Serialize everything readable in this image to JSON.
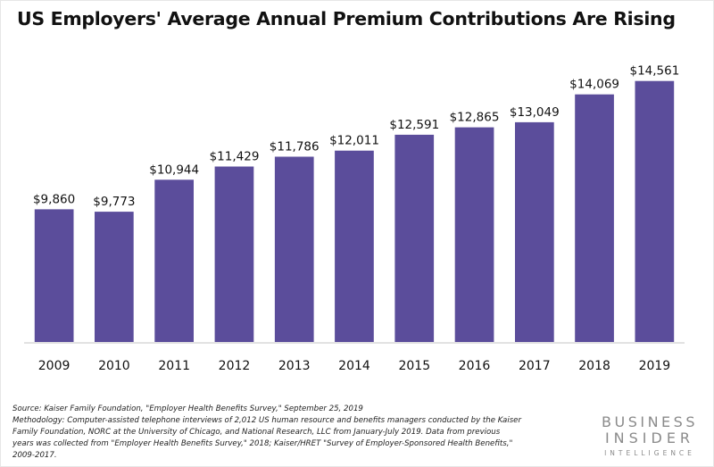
{
  "header": {
    "title": "US Employers' Average Annual Premium Contributions Are Rising"
  },
  "chart_data": {
    "type": "bar",
    "title": "US Employers' Average Annual Premium Contributions Are Rising",
    "xlabel": "",
    "ylabel": "",
    "categories": [
      "2009",
      "2010",
      "2011",
      "2012",
      "2013",
      "2014",
      "2015",
      "2016",
      "2017",
      "2018",
      "2019"
    ],
    "values": [
      9860,
      9773,
      10944,
      11429,
      11786,
      12011,
      12591,
      12865,
      13049,
      14069,
      14561
    ],
    "value_labels": [
      "$9,860",
      "$9,773",
      "$10,944",
      "$11,429",
      "$11,786",
      "$12,011",
      "$12,591",
      "$12,865",
      "$13,049",
      "$14,069",
      "$14,561"
    ],
    "ylim": [
      5000,
      15500
    ],
    "grid": false,
    "legend": "none",
    "bar_color": "#5b4d9b",
    "axis_color": "#d9d9d9"
  },
  "footnote": {
    "lines": [
      "Source: Kaiser Family Foundation, \"Employer Health Benefits Survey,\" September 25, 2019",
      "Methodology: Computer-assisted telephone interviews of 2,012 US human resource and benefits managers conducted by the Kaiser",
      "Family Foundation, NORC at the University of Chicago, and National Research, LLC from January-July 2019. Data from previous",
      "years was collected from \"Employer Health Benefits Survey,\" 2018; Kaiser/HRET \"Survey of Employer-Sponsored Health Benefits,\"",
      "2009-2017."
    ]
  },
  "logo": {
    "line1": "BUSINESS",
    "line2": "INSIDER",
    "line3": "INTELLIGENCE"
  }
}
